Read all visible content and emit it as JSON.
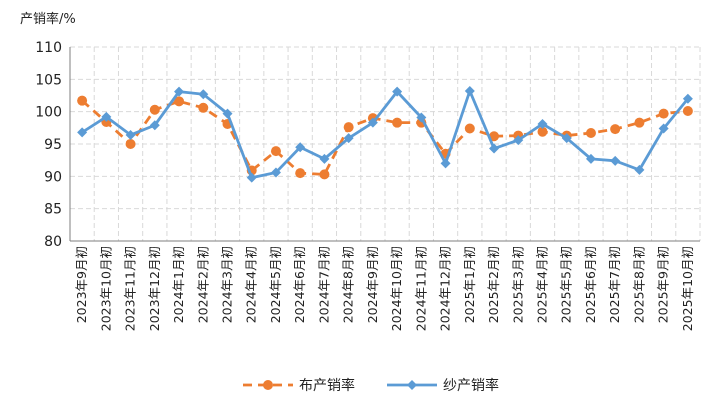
{
  "chart_data": {
    "type": "line",
    "ylabel": "产销率/%",
    "ylim": [
      80,
      110
    ],
    "yticks": [
      80,
      85,
      90,
      95,
      100,
      105,
      110
    ],
    "grid": true,
    "legend_position": "bottom-center",
    "categories": [
      "2023年9月初",
      "2023年10月初",
      "2023年11月初",
      "2023年12月初",
      "2024年1月初",
      "2024年2月初",
      "2024年3月初",
      "2024年4月初",
      "2024年5月初",
      "2024年6月初",
      "2024年7月初",
      "2024年8月初",
      "2024年9月初",
      "2024年10月初",
      "2024年11月初",
      "2024年12月初",
      "2025年1月初",
      "2025年2月初",
      "2025年3月初",
      "2025年4月初",
      "2025年5月初",
      "2025年6月初",
      "2025年7月初",
      "2025年8月初",
      "2025年9月初",
      "2025年10月初"
    ],
    "series": [
      {
        "name": "布产销率",
        "color": "#ED7D31",
        "style": "dashed",
        "marker": "circle",
        "values": [
          101.7,
          98.4,
          95.0,
          100.3,
          101.6,
          100.6,
          98.1,
          90.9,
          93.9,
          90.5,
          90.3,
          97.6,
          99.0,
          98.3,
          98.3,
          93.5,
          97.4,
          96.2,
          96.3,
          96.9,
          96.3,
          96.7,
          97.3,
          98.3,
          99.7,
          100.1
        ]
      },
      {
        "name": "纱产销率",
        "color": "#5B9BD5",
        "style": "solid",
        "marker": "diamond",
        "values": [
          96.8,
          99.2,
          96.4,
          97.9,
          103.1,
          102.7,
          99.7,
          89.8,
          90.6,
          94.5,
          92.7,
          95.9,
          98.3,
          103.1,
          99.1,
          92.0,
          103.2,
          94.3,
          95.6,
          98.1,
          95.9,
          92.7,
          92.4,
          91.0,
          97.4,
          102.0
        ]
      }
    ]
  }
}
